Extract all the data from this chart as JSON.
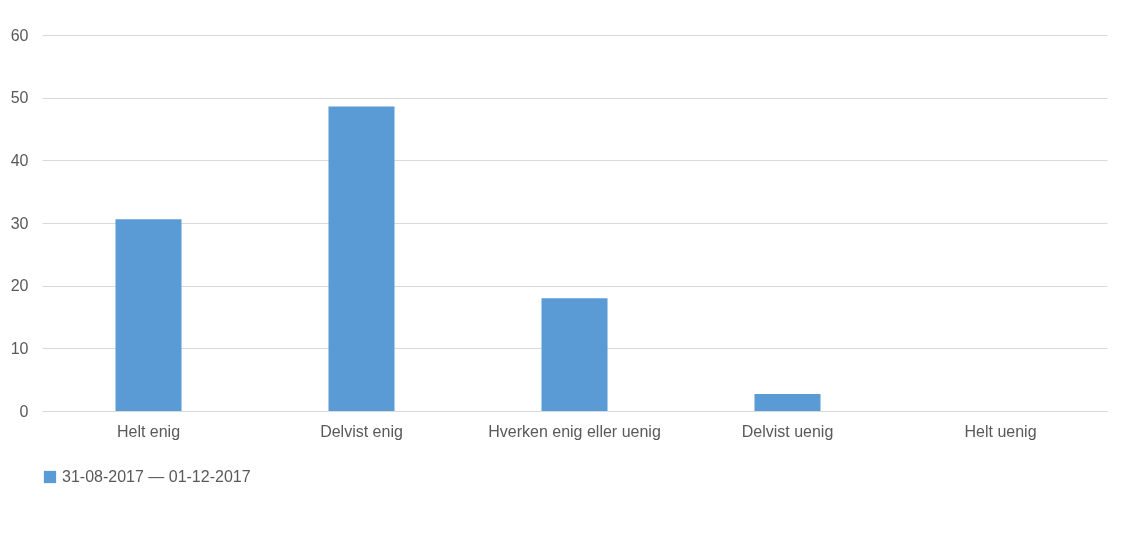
{
  "chart_data": {
    "type": "bar",
    "categories": [
      "Helt enig",
      "Delvist enig",
      "Hverken enig eller uenig",
      "Delvist uenig",
      "Helt uenig"
    ],
    "series": [
      {
        "name": "31-08-2017 — 01-12-2017",
        "color": "#5b9bd5",
        "values": [
          30.6,
          48.6,
          18.0,
          2.7,
          0
        ]
      }
    ],
    "ylim": [
      0,
      60
    ],
    "yticks": [
      0,
      10,
      20,
      30,
      40,
      50,
      60
    ],
    "grid": "y",
    "legend": "bottom"
  }
}
